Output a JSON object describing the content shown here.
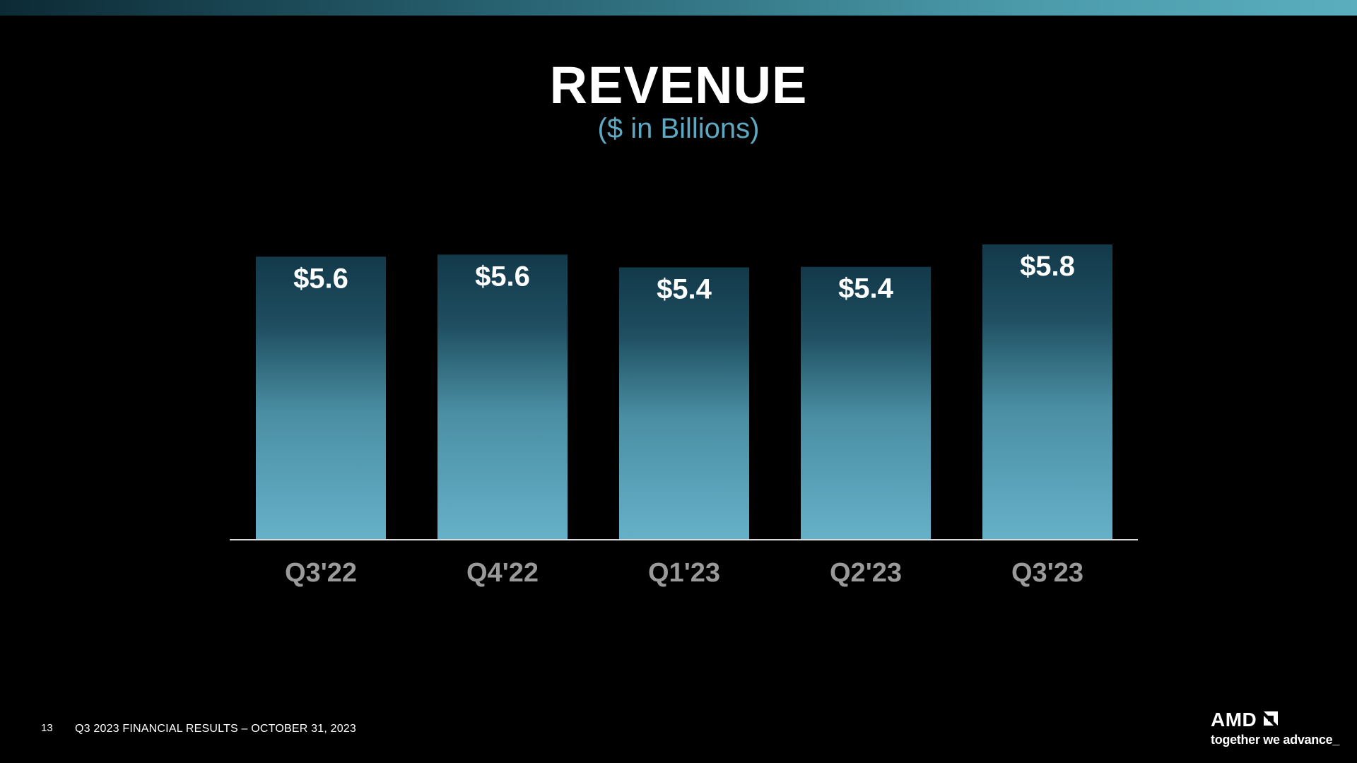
{
  "slide": {
    "title": "REVENUE",
    "subtitle": "($ in Billions)",
    "page_number": "13",
    "footer": "Q3 2023 FINANCIAL RESULTS – OCTOBER 31, 2023"
  },
  "logo": {
    "wordmark": "AMD",
    "tagline": "together we advance_",
    "icon": "amd-arrow-icon"
  },
  "colors": {
    "background": "#000000",
    "bar_top": "#12394a",
    "bar_bottom": "#66b1c8",
    "subtitle": "#5ea8c2",
    "category_label": "#9a9a9a"
  },
  "chart_data": {
    "type": "bar",
    "title": "REVENUE",
    "subtitle": "($ in Billions)",
    "categories": [
      "Q3'22",
      "Q4'22",
      "Q1'23",
      "Q2'23",
      "Q3'23"
    ],
    "values": [
      5.56,
      5.6,
      5.35,
      5.36,
      5.8
    ],
    "data_labels": [
      "$5.6",
      "$5.6",
      "$5.4",
      "$5.4",
      "$5.8"
    ],
    "xlabel": "",
    "ylabel": "",
    "ylim": [
      0,
      5.8
    ],
    "grid": false,
    "legend": "none"
  }
}
